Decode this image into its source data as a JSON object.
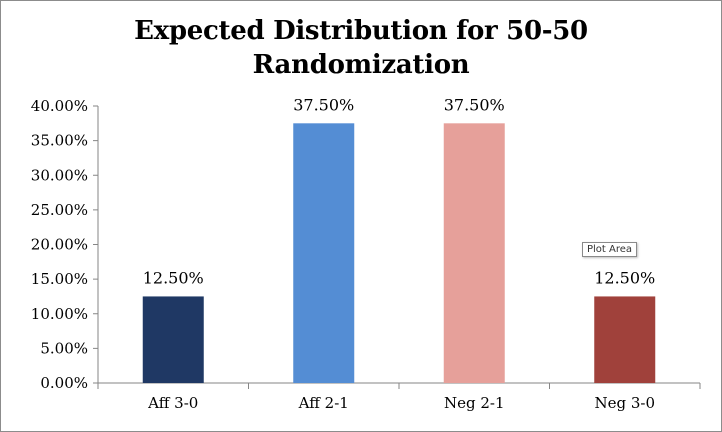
{
  "chart_data": {
    "type": "bar",
    "title": "Expected Distribution for 50-50 Randomization",
    "title_lines": [
      "Expected Distribution for 50-50",
      "Randomization"
    ],
    "categories": [
      "Aff 3-0",
      "Aff 2-1",
      "Neg 2-1",
      "Neg 3-0"
    ],
    "values": [
      12.5,
      37.5,
      37.5,
      12.5
    ],
    "data_labels": [
      "12.50%",
      "37.50%",
      "37.50%",
      "12.50%"
    ],
    "bar_colors": [
      "#1f3864",
      "#548dd4",
      "#e6a09a",
      "#a0413b"
    ],
    "ylim": [
      0,
      40
    ],
    "y_ticks": [
      0,
      5,
      10,
      15,
      20,
      25,
      30,
      35,
      40
    ],
    "y_tick_labels": [
      "0.00%",
      "5.00%",
      "10.00%",
      "15.00%",
      "20.00%",
      "25.00%",
      "30.00%",
      "35.00%",
      "40.00%"
    ],
    "xlabel": "",
    "ylabel": "",
    "grid": false,
    "legend": "none"
  },
  "tooltip": {
    "text": "Plot Area"
  }
}
